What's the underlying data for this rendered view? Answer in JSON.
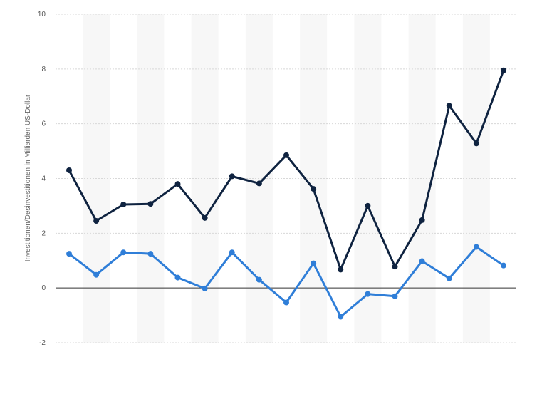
{
  "chart_data": {
    "type": "line",
    "title": "",
    "xlabel": "",
    "ylabel": "Investitionen/Desinvestitionen in Milliarden US-Dollar",
    "ylim": [
      -2,
      10
    ],
    "yticks": [
      10,
      8,
      6,
      4,
      2,
      0,
      -2
    ],
    "grid": true,
    "legend": "none",
    "x": [
      1,
      2,
      3,
      4,
      5,
      6,
      7,
      8,
      9,
      10,
      11,
      12,
      13,
      14,
      15,
      16,
      17
    ],
    "series": [
      {
        "color": "#0f2340",
        "values": [
          4.3,
          2.45,
          3.05,
          3.07,
          3.8,
          2.56,
          4.08,
          3.82,
          4.85,
          3.62,
          0.67,
          3.0,
          0.78,
          2.48,
          6.66,
          5.28,
          7.95
        ]
      },
      {
        "color": "#2f7ed8",
        "values": [
          1.25,
          0.48,
          1.3,
          1.25,
          0.38,
          -0.02,
          1.3,
          0.3,
          -0.53,
          0.9,
          -1.05,
          -0.22,
          -0.3,
          0.98,
          0.35,
          1.5,
          0.82
        ]
      }
    ]
  }
}
